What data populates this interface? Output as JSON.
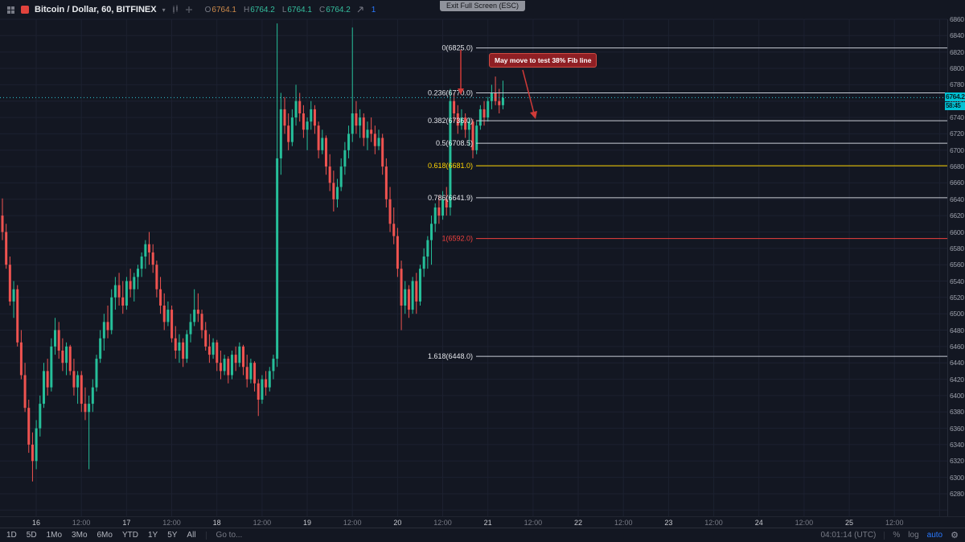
{
  "topbar": {
    "symbol_title": "Bitcoin / Dollar, 60, BITFINEX",
    "ohlc": {
      "o_label": "O",
      "o": "6764.1",
      "h_label": "H",
      "h": "6764.2",
      "l_label": "L",
      "l": "6764.1",
      "c_label": "C",
      "c": "6764.2"
    },
    "indicator_count": "1"
  },
  "fullscreen_tooltip": "Exit Full Screen (ESC)",
  "callout": {
    "text": "May move to test 38% Fib line"
  },
  "price_scale": {
    "labels": [
      6860,
      6840,
      6820,
      6800,
      6780,
      6760,
      6740,
      6720,
      6700,
      6680,
      6660,
      6640,
      6620,
      6600,
      6580,
      6560,
      6540,
      6520,
      6500,
      6480,
      6460,
      6440,
      6420,
      6400,
      6380,
      6360,
      6340,
      6320,
      6300,
      6280
    ],
    "price_tag": {
      "price": "6764.2",
      "countdown": "58:45"
    }
  },
  "time_scale": {
    "labels": [
      {
        "text": "16",
        "major": true
      },
      {
        "text": "12:00",
        "major": false
      },
      {
        "text": "17",
        "major": true
      },
      {
        "text": "12:00",
        "major": false
      },
      {
        "text": "18",
        "major": true
      },
      {
        "text": "12:00",
        "major": false
      },
      {
        "text": "19",
        "major": true
      },
      {
        "text": "12:00",
        "major": false
      },
      {
        "text": "20",
        "major": true
      },
      {
        "text": "12:00",
        "major": false
      },
      {
        "text": "21",
        "major": true
      },
      {
        "text": "12:00",
        "major": false
      },
      {
        "text": "22",
        "major": true
      },
      {
        "text": "12:00",
        "major": false
      },
      {
        "text": "23",
        "major": true
      },
      {
        "text": "12:00",
        "major": false
      },
      {
        "text": "24",
        "major": true
      },
      {
        "text": "12:00",
        "major": false
      },
      {
        "text": "25",
        "major": true
      },
      {
        "text": "12:00",
        "major": false
      }
    ]
  },
  "toolbar": {
    "ranges": [
      "1D",
      "5D",
      "1Mo",
      "3Mo",
      "6Mo",
      "YTD",
      "1Y",
      "5Y",
      "All"
    ],
    "goto": "Go to...",
    "clock": "04:01:14 (UTC)",
    "percent": "%",
    "log": "log",
    "auto": "auto"
  },
  "chart_data": {
    "type": "candlestick",
    "y_axis": {
      "min": 6280,
      "max": 6860,
      "step": 20
    },
    "last_price": 6764.2,
    "colors": {
      "up": "#26bf9a",
      "down": "#ef5350",
      "grid": "#1c2130",
      "price_line": "#30c6d4",
      "accent_tag": "#00c2d4"
    },
    "fib_levels": [
      {
        "label": "0(6825.0)",
        "price": 6825.0,
        "color": "#c9cdd6"
      },
      {
        "label": "0.236(6770.0)",
        "price": 6770.0,
        "color": "#c9cdd6"
      },
      {
        "label": "0.382(6736.0)",
        "price": 6736.0,
        "color": "#c9cdd6"
      },
      {
        "label": "0.5(6708.5)",
        "price": 6708.5,
        "color": "#c9cdd6"
      },
      {
        "label": "0.618(6681.0)",
        "price": 6681.0,
        "color": "#ffd500"
      },
      {
        "label": "0.786(6641.9)",
        "price": 6641.9,
        "color": "#c9cdd6"
      },
      {
        "label": "1(6592.0)",
        "price": 6592.0,
        "color": "#ef413e"
      },
      {
        "label": "1.618(6448.0)",
        "price": 6448.0,
        "color": "#c9cdd6"
      }
    ],
    "candles": [
      [
        6620,
        6641,
        6590,
        6600
      ],
      [
        6600,
        6610,
        6555,
        6560
      ],
      [
        6560,
        6570,
        6510,
        6515
      ],
      [
        6515,
        6540,
        6495,
        6530
      ],
      [
        6530,
        6535,
        6460,
        6465
      ],
      [
        6465,
        6480,
        6420,
        6425
      ],
      [
        6425,
        6440,
        6380,
        6385
      ],
      [
        6385,
        6395,
        6330,
        6340
      ],
      [
        6340,
        6355,
        6295,
        6320
      ],
      [
        6320,
        6370,
        6310,
        6360
      ],
      [
        6360,
        6400,
        6350,
        6390
      ],
      [
        6390,
        6440,
        6385,
        6430
      ],
      [
        6430,
        6445,
        6400,
        6410
      ],
      [
        6410,
        6470,
        6405,
        6460
      ],
      [
        6460,
        6495,
        6450,
        6480
      ],
      [
        6480,
        6490,
        6445,
        6455
      ],
      [
        6455,
        6470,
        6430,
        6440
      ],
      [
        6440,
        6465,
        6425,
        6460
      ],
      [
        6460,
        6462,
        6425,
        6430
      ],
      [
        6430,
        6445,
        6400,
        6410
      ],
      [
        6410,
        6430,
        6390,
        6425
      ],
      [
        6425,
        6430,
        6380,
        6390
      ],
      [
        6390,
        6410,
        6370,
        6380
      ],
      [
        6380,
        6400,
        6310,
        6390
      ],
      [
        6390,
        6420,
        6380,
        6410
      ],
      [
        6410,
        6450,
        6405,
        6445
      ],
      [
        6445,
        6480,
        6440,
        6470
      ],
      [
        6470,
        6500,
        6455,
        6490
      ],
      [
        6490,
        6510,
        6470,
        6480
      ],
      [
        6480,
        6530,
        6475,
        6520
      ],
      [
        6520,
        6545,
        6505,
        6535
      ],
      [
        6535,
        6550,
        6510,
        6520
      ],
      [
        6520,
        6540,
        6500,
        6510
      ],
      [
        6510,
        6545,
        6505,
        6540
      ],
      [
        6540,
        6555,
        6520,
        6530
      ],
      [
        6530,
        6550,
        6515,
        6545
      ],
      [
        6545,
        6560,
        6530,
        6555
      ],
      [
        6555,
        6575,
        6545,
        6570
      ],
      [
        6570,
        6590,
        6555,
        6585
      ],
      [
        6585,
        6600,
        6560,
        6575
      ],
      [
        6575,
        6585,
        6550,
        6560
      ],
      [
        6560,
        6565,
        6520,
        6530
      ],
      [
        6530,
        6545,
        6500,
        6510
      ],
      [
        6510,
        6525,
        6480,
        6490
      ],
      [
        6490,
        6515,
        6485,
        6505
      ],
      [
        6505,
        6510,
        6465,
        6470
      ],
      [
        6470,
        6485,
        6445,
        6455
      ],
      [
        6455,
        6475,
        6440,
        6465
      ],
      [
        6465,
        6470,
        6435,
        6445
      ],
      [
        6445,
        6480,
        6440,
        6475
      ],
      [
        6475,
        6500,
        6465,
        6490
      ],
      [
        6490,
        6530,
        6485,
        6505
      ],
      [
        6505,
        6525,
        6490,
        6500
      ],
      [
        6500,
        6505,
        6470,
        6480
      ],
      [
        6480,
        6490,
        6455,
        6460
      ],
      [
        6460,
        6475,
        6440,
        6450
      ],
      [
        6450,
        6470,
        6445,
        6465
      ],
      [
        6465,
        6468,
        6430,
        6440
      ],
      [
        6440,
        6455,
        6420,
        6430
      ],
      [
        6430,
        6450,
        6425,
        6445
      ],
      [
        6445,
        6448,
        6415,
        6425
      ],
      [
        6425,
        6455,
        6420,
        6450
      ],
      [
        6450,
        6460,
        6430,
        6440
      ],
      [
        6440,
        6465,
        6435,
        6460
      ],
      [
        6460,
        6462,
        6425,
        6435
      ],
      [
        6435,
        6450,
        6410,
        6420
      ],
      [
        6420,
        6445,
        6415,
        6440
      ],
      [
        6440,
        6442,
        6405,
        6415
      ],
      [
        6415,
        6420,
        6375,
        6395
      ],
      [
        6395,
        6425,
        6390,
        6420
      ],
      [
        6420,
        6430,
        6400,
        6410
      ],
      [
        6410,
        6435,
        6405,
        6430
      ],
      [
        6430,
        6450,
        6420,
        6445
      ],
      [
        6445,
        6855,
        6435,
        6690
      ],
      [
        6690,
        6770,
        6670,
        6750
      ],
      [
        6750,
        6765,
        6720,
        6730
      ],
      [
        6730,
        6745,
        6700,
        6710
      ],
      [
        6710,
        6750,
        6705,
        6740
      ],
      [
        6740,
        6780,
        6730,
        6760
      ],
      [
        6760,
        6770,
        6735,
        6745
      ],
      [
        6745,
        6755,
        6715,
        6725
      ],
      [
        6725,
        6740,
        6700,
        6735
      ],
      [
        6735,
        6760,
        6725,
        6750
      ],
      [
        6750,
        6755,
        6720,
        6730
      ],
      [
        6730,
        6735,
        6690,
        6700
      ],
      [
        6700,
        6725,
        6695,
        6715
      ],
      [
        6715,
        6718,
        6670,
        6680
      ],
      [
        6680,
        6695,
        6650,
        6660
      ],
      [
        6660,
        6675,
        6625,
        6640
      ],
      [
        6640,
        6665,
        6630,
        6655
      ],
      [
        6655,
        6690,
        6650,
        6680
      ],
      [
        6680,
        6710,
        6670,
        6700
      ],
      [
        6700,
        6730,
        6690,
        6720
      ],
      [
        6720,
        6850,
        6710,
        6745
      ],
      [
        6745,
        6760,
        6720,
        6730
      ],
      [
        6730,
        6750,
        6715,
        6740
      ],
      [
        6740,
        6745,
        6705,
        6715
      ],
      [
        6715,
        6735,
        6700,
        6725
      ],
      [
        6725,
        6740,
        6710,
        6720
      ],
      [
        6720,
        6730,
        6695,
        6705
      ],
      [
        6705,
        6725,
        6700,
        6715
      ],
      [
        6715,
        6720,
        6670,
        6680
      ],
      [
        6680,
        6690,
        6630,
        6640
      ],
      [
        6640,
        6655,
        6600,
        6610
      ],
      [
        6610,
        6630,
        6585,
        6595
      ],
      [
        6595,
        6605,
        6545,
        6555
      ],
      [
        6555,
        6565,
        6480,
        6510
      ],
      [
        6510,
        6540,
        6500,
        6530
      ],
      [
        6530,
        6535,
        6495,
        6505
      ],
      [
        6505,
        6545,
        6500,
        6540
      ],
      [
        6540,
        6550,
        6500,
        6515
      ],
      [
        6515,
        6560,
        6510,
        6555
      ],
      [
        6555,
        6580,
        6545,
        6570
      ],
      [
        6570,
        6595,
        6555,
        6590
      ],
      [
        6590,
        6620,
        6560,
        6610
      ],
      [
        6610,
        6635,
        6600,
        6630
      ],
      [
        6630,
        6645,
        6610,
        6620
      ],
      [
        6620,
        6650,
        6615,
        6640
      ],
      [
        6640,
        6655,
        6620,
        6630
      ],
      [
        6630,
        6775,
        6620,
        6760
      ],
      [
        6760,
        6770,
        6735,
        6745
      ],
      [
        6745,
        6755,
        6720,
        6730
      ],
      [
        6730,
        6750,
        6725,
        6740
      ],
      [
        6740,
        6745,
        6715,
        6725
      ],
      [
        6725,
        6740,
        6705,
        6735
      ],
      [
        6735,
        6738,
        6690,
        6700
      ],
      [
        6700,
        6735,
        6695,
        6730
      ],
      [
        6730,
        6755,
        6725,
        6750
      ],
      [
        6750,
        6760,
        6730,
        6740
      ],
      [
        6740,
        6765,
        6735,
        6760
      ],
      [
        6760,
        6780,
        6750,
        6770
      ],
      [
        6770,
        6790,
        6755,
        6760
      ],
      [
        6760,
        6775,
        6745,
        6755
      ],
      [
        6755,
        6785,
        6750,
        6764
      ]
    ]
  }
}
